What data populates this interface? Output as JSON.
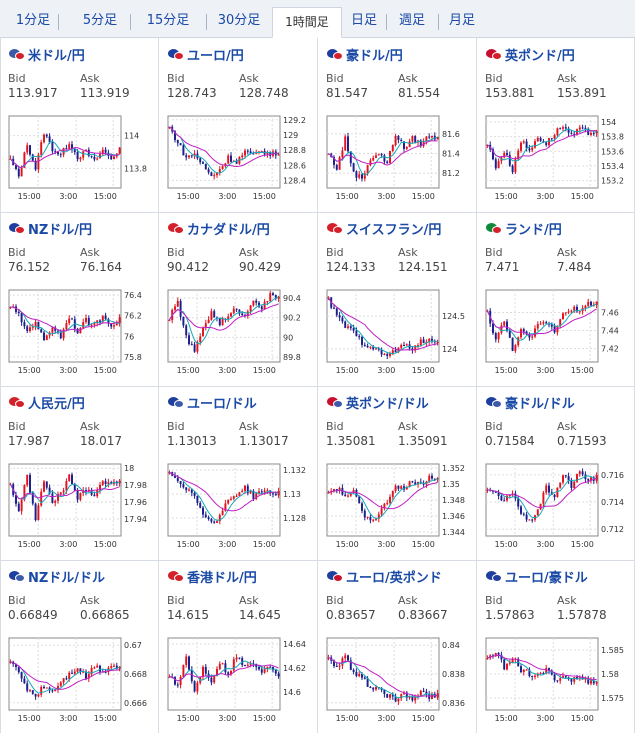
{
  "tabs": [
    {
      "label": "1分足",
      "active": false
    },
    {
      "label": "5分足",
      "active": false
    },
    {
      "label": "15分足",
      "active": false
    },
    {
      "label": "30分足",
      "active": false
    },
    {
      "label": "1時間足",
      "active": true
    },
    {
      "label": "日足",
      "active": false
    },
    {
      "label": "週足",
      "active": false
    },
    {
      "label": "月足",
      "active": false
    }
  ],
  "labels": {
    "bid": "Bid",
    "ask": "Ask"
  },
  "colors": {
    "up": "#e0141e",
    "down": "#1b1f8c",
    "ma_short": "#19a8b8",
    "ma_long": "#c21ec6",
    "link": "#1a4aa6"
  },
  "cards": [
    {
      "pair": "米ドル/円",
      "flags": [
        "us-flag-icon",
        "jp-flag-icon"
      ],
      "colors": [
        "#3c5aa8",
        "#d3202a"
      ],
      "bid": "113.917",
      "ask": "113.919",
      "chart_data": {
        "type": "candlestick",
        "xticks": [
          "15:00",
          "3:00",
          "15:00"
        ],
        "yticks": [
          "114",
          "113.8"
        ],
        "ylim": [
          113.68,
          114.12
        ],
        "anchors": [
          113.85,
          113.75,
          113.95,
          113.8,
          114.02,
          113.92,
          113.88,
          113.96,
          113.87,
          113.9,
          113.84,
          113.91,
          113.86,
          113.92
        ]
      }
    },
    {
      "pair": "ユーロ/円",
      "flags": [
        "eu-flag-icon",
        "jp-flag-icon"
      ],
      "colors": [
        "#1f3f9f",
        "#d3202a"
      ],
      "bid": "128.743",
      "ask": "128.748",
      "chart_data": {
        "type": "candlestick",
        "xticks": [
          "15:00",
          "3:00",
          "15:00"
        ],
        "yticks": [
          "129.2",
          "129",
          "128.8",
          "128.6",
          "128.4"
        ],
        "ylim": [
          128.3,
          129.25
        ],
        "anchors": [
          129.1,
          128.9,
          128.7,
          128.75,
          128.6,
          128.45,
          128.55,
          128.7,
          128.65,
          128.78,
          128.72,
          128.8,
          128.74,
          128.76
        ]
      }
    },
    {
      "pair": "豪ドル/円",
      "flags": [
        "au-flag-icon",
        "jp-flag-icon"
      ],
      "colors": [
        "#1f3f9f",
        "#d3202a"
      ],
      "bid": "81.547",
      "ask": "81.554",
      "chart_data": {
        "type": "candlestick",
        "xticks": [
          "15:00",
          "3:00",
          "15:00"
        ],
        "yticks": [
          "81.6",
          "81.4",
          "81.2"
        ],
        "ylim": [
          81.05,
          81.78
        ],
        "anchors": [
          81.4,
          81.25,
          81.55,
          81.2,
          81.15,
          81.35,
          81.4,
          81.3,
          81.6,
          81.45,
          81.55,
          81.5,
          81.58,
          81.55
        ]
      }
    },
    {
      "pair": "英ポンド/円",
      "flags": [
        "gb-flag-icon",
        "jp-flag-icon"
      ],
      "colors": [
        "#c8102e",
        "#d3202a"
      ],
      "bid": "153.881",
      "ask": "153.891",
      "chart_data": {
        "type": "candlestick",
        "xticks": [
          "15:00",
          "3:00",
          "15:00"
        ],
        "yticks": [
          "154",
          "153.8",
          "153.6",
          "153.4",
          "153.2"
        ],
        "ylim": [
          153.1,
          154.08
        ],
        "anchors": [
          153.7,
          153.4,
          153.6,
          153.35,
          153.75,
          153.6,
          153.8,
          153.7,
          153.85,
          153.95,
          153.8,
          153.9,
          153.85,
          153.88
        ]
      }
    },
    {
      "pair": "NZドル/円",
      "flags": [
        "nz-flag-icon",
        "jp-flag-icon"
      ],
      "colors": [
        "#1f3f9f",
        "#d3202a"
      ],
      "bid": "76.152",
      "ask": "76.164",
      "chart_data": {
        "type": "candlestick",
        "xticks": [
          "15:00",
          "3:00",
          "15:00"
        ],
        "yticks": [
          "76.4",
          "76.2",
          "76",
          "75.8"
        ],
        "ylim": [
          75.75,
          76.45
        ],
        "anchors": [
          76.3,
          76.2,
          76.05,
          76.15,
          75.95,
          76.1,
          76.0,
          76.2,
          76.05,
          76.15,
          76.1,
          76.2,
          76.12,
          76.16
        ]
      }
    },
    {
      "pair": "カナダドル/円",
      "flags": [
        "ca-flag-icon",
        "jp-flag-icon"
      ],
      "colors": [
        "#d3202a",
        "#d3202a"
      ],
      "bid": "90.412",
      "ask": "90.429",
      "chart_data": {
        "type": "candlestick",
        "xticks": [
          "15:00",
          "3:00",
          "15:00"
        ],
        "yticks": [
          "90.4",
          "90.2",
          "90",
          "89.8"
        ],
        "ylim": [
          89.75,
          90.48
        ],
        "anchors": [
          90.2,
          90.35,
          90.0,
          89.85,
          90.1,
          90.25,
          90.15,
          90.2,
          90.3,
          90.2,
          90.4,
          90.3,
          90.42,
          90.41
        ]
      }
    },
    {
      "pair": "スイスフラン/円",
      "flags": [
        "ch-flag-icon",
        "jp-flag-icon"
      ],
      "colors": [
        "#d3202a",
        "#d3202a"
      ],
      "bid": "124.133",
      "ask": "124.151",
      "chart_data": {
        "type": "candlestick",
        "xticks": [
          "15:00",
          "3:00",
          "15:00"
        ],
        "yticks": [
          "124.5",
          "124"
        ],
        "ylim": [
          123.8,
          124.9
        ],
        "anchors": [
          124.75,
          124.5,
          124.35,
          124.25,
          124.1,
          124.05,
          123.95,
          123.9,
          123.98,
          124.05,
          124.02,
          124.1,
          124.12,
          124.14
        ]
      }
    },
    {
      "pair": "ランド/円",
      "flags": [
        "za-flag-icon",
        "jp-flag-icon"
      ],
      "colors": [
        "#0f8a3a",
        "#d3202a"
      ],
      "bid": "7.471",
      "ask": "7.484",
      "chart_data": {
        "type": "candlestick",
        "xticks": [
          "15:00",
          "3:00",
          "15:00"
        ],
        "yticks": [
          "7.46",
          "7.44",
          "7.42"
        ],
        "ylim": [
          7.405,
          7.485
        ],
        "anchors": [
          7.46,
          7.43,
          7.45,
          7.42,
          7.44,
          7.43,
          7.445,
          7.45,
          7.44,
          7.46,
          7.465,
          7.46,
          7.47,
          7.471
        ]
      }
    },
    {
      "pair": "人民元/円",
      "flags": [
        "cn-flag-icon",
        "jp-flag-icon"
      ],
      "colors": [
        "#d3202a",
        "#d3202a"
      ],
      "bid": "17.987",
      "ask": "18.017",
      "chart_data": {
        "type": "candlestick",
        "xticks": [
          "15:00",
          "3:00",
          "15:00"
        ],
        "yticks": [
          "18",
          "17.98",
          "17.96",
          "17.94"
        ],
        "ylim": [
          17.92,
          18.005
        ],
        "anchors": [
          17.98,
          17.95,
          17.99,
          17.94,
          17.985,
          17.96,
          17.97,
          17.99,
          17.965,
          17.975,
          17.97,
          17.985,
          17.98,
          17.987
        ]
      }
    },
    {
      "pair": "ユーロ/ドル",
      "flags": [
        "eu-flag-icon",
        "us-flag-icon"
      ],
      "colors": [
        "#1f3f9f",
        "#3c5aa8"
      ],
      "bid": "1.13013",
      "ask": "1.13017",
      "chart_data": {
        "type": "candlestick",
        "xticks": [
          "15:00",
          "3:00",
          "15:00"
        ],
        "yticks": [
          "1.132",
          "1.13",
          "1.128"
        ],
        "ylim": [
          1.1265,
          1.1325
        ],
        "anchors": [
          1.1318,
          1.1312,
          1.1305,
          1.1298,
          1.1285,
          1.1275,
          1.1282,
          1.1295,
          1.13,
          1.1305,
          1.1298,
          1.1303,
          1.13,
          1.1301
        ]
      }
    },
    {
      "pair": "英ポンド/ドル",
      "flags": [
        "gb-flag-icon",
        "us-flag-icon"
      ],
      "colors": [
        "#c8102e",
        "#3c5aa8"
      ],
      "bid": "1.35081",
      "ask": "1.35091",
      "chart_data": {
        "type": "candlestick",
        "xticks": [
          "15:00",
          "3:00",
          "15:00"
        ],
        "yticks": [
          "1.352",
          "1.35",
          "1.348",
          "1.346",
          "1.344"
        ],
        "ylim": [
          1.3435,
          1.3525
        ],
        "anchors": [
          1.349,
          1.3495,
          1.3485,
          1.349,
          1.3465,
          1.3455,
          1.3462,
          1.3478,
          1.35,
          1.3492,
          1.3505,
          1.3498,
          1.351,
          1.3508
        ]
      }
    },
    {
      "pair": "豪ドル/ドル",
      "flags": [
        "au-flag-icon",
        "us-flag-icon"
      ],
      "colors": [
        "#1f3f9f",
        "#3c5aa8"
      ],
      "bid": "0.71584",
      "ask": "0.71593",
      "chart_data": {
        "type": "candlestick",
        "xticks": [
          "15:00",
          "3:00",
          "15:00"
        ],
        "yticks": [
          "0.716",
          "0.714",
          "0.712"
        ],
        "ylim": [
          0.7115,
          0.7168
        ],
        "anchors": [
          0.715,
          0.7145,
          0.714,
          0.7148,
          0.7132,
          0.7125,
          0.7135,
          0.715,
          0.7145,
          0.716,
          0.7152,
          0.7162,
          0.7156,
          0.7158
        ]
      }
    },
    {
      "pair": "NZドル/ドル",
      "flags": [
        "nz-flag-icon",
        "us-flag-icon"
      ],
      "colors": [
        "#1f3f9f",
        "#3c5aa8"
      ],
      "bid": "0.66849",
      "ask": "0.66865",
      "chart_data": {
        "type": "candlestick",
        "xticks": [
          "15:00",
          "3:00",
          "15:00"
        ],
        "yticks": [
          "0.67",
          "0.668",
          "0.666"
        ],
        "ylim": [
          0.6655,
          0.6705
        ],
        "anchors": [
          0.669,
          0.668,
          0.667,
          0.6665,
          0.6672,
          0.6668,
          0.6675,
          0.668,
          0.6685,
          0.6678,
          0.6686,
          0.6682,
          0.6686,
          0.6685
        ]
      }
    },
    {
      "pair": "香港ドル/円",
      "flags": [
        "hk-flag-icon",
        "jp-flag-icon"
      ],
      "colors": [
        "#d3202a",
        "#d3202a"
      ],
      "bid": "14.615",
      "ask": "14.645",
      "chart_data": {
        "type": "candlestick",
        "xticks": [
          "15:00",
          "3:00",
          "15:00"
        ],
        "yticks": [
          "14.64",
          "14.62",
          "14.6"
        ],
        "ylim": [
          14.585,
          14.645
        ],
        "anchors": [
          14.615,
          14.605,
          14.63,
          14.6,
          14.62,
          14.61,
          14.625,
          14.615,
          14.63,
          14.62,
          14.625,
          14.618,
          14.622,
          14.615
        ]
      }
    },
    {
      "pair": "ユーロ/英ポンド",
      "flags": [
        "eu-flag-icon",
        "gb-flag-icon"
      ],
      "colors": [
        "#1f3f9f",
        "#c8102e"
      ],
      "bid": "0.83657",
      "ask": "0.83667",
      "chart_data": {
        "type": "candlestick",
        "xticks": [
          "15:00",
          "3:00",
          "15:00"
        ],
        "yticks": [
          "0.84",
          "0.838",
          "0.836"
        ],
        "ylim": [
          0.8355,
          0.8405
        ],
        "anchors": [
          0.839,
          0.8385,
          0.8392,
          0.838,
          0.8378,
          0.837,
          0.8372,
          0.8365,
          0.8362,
          0.8366,
          0.8363,
          0.8367,
          0.8364,
          0.8366
        ]
      }
    },
    {
      "pair": "ユーロ/豪ドル",
      "flags": [
        "eu-flag-icon",
        "au-flag-icon"
      ],
      "colors": [
        "#1f3f9f",
        "#1f3f9f"
      ],
      "bid": "1.57863",
      "ask": "1.57878",
      "chart_data": {
        "type": "candlestick",
        "xticks": [
          "15:00",
          "3:00",
          "15:00"
        ],
        "yticks": [
          "1.585",
          "1.58",
          "1.575"
        ],
        "ylim": [
          1.5725,
          1.5875
        ],
        "anchors": [
          1.583,
          1.5845,
          1.5815,
          1.5835,
          1.581,
          1.58,
          1.5795,
          1.5808,
          1.579,
          1.5795,
          1.5788,
          1.5792,
          1.5785,
          1.5786
        ]
      }
    }
  ]
}
